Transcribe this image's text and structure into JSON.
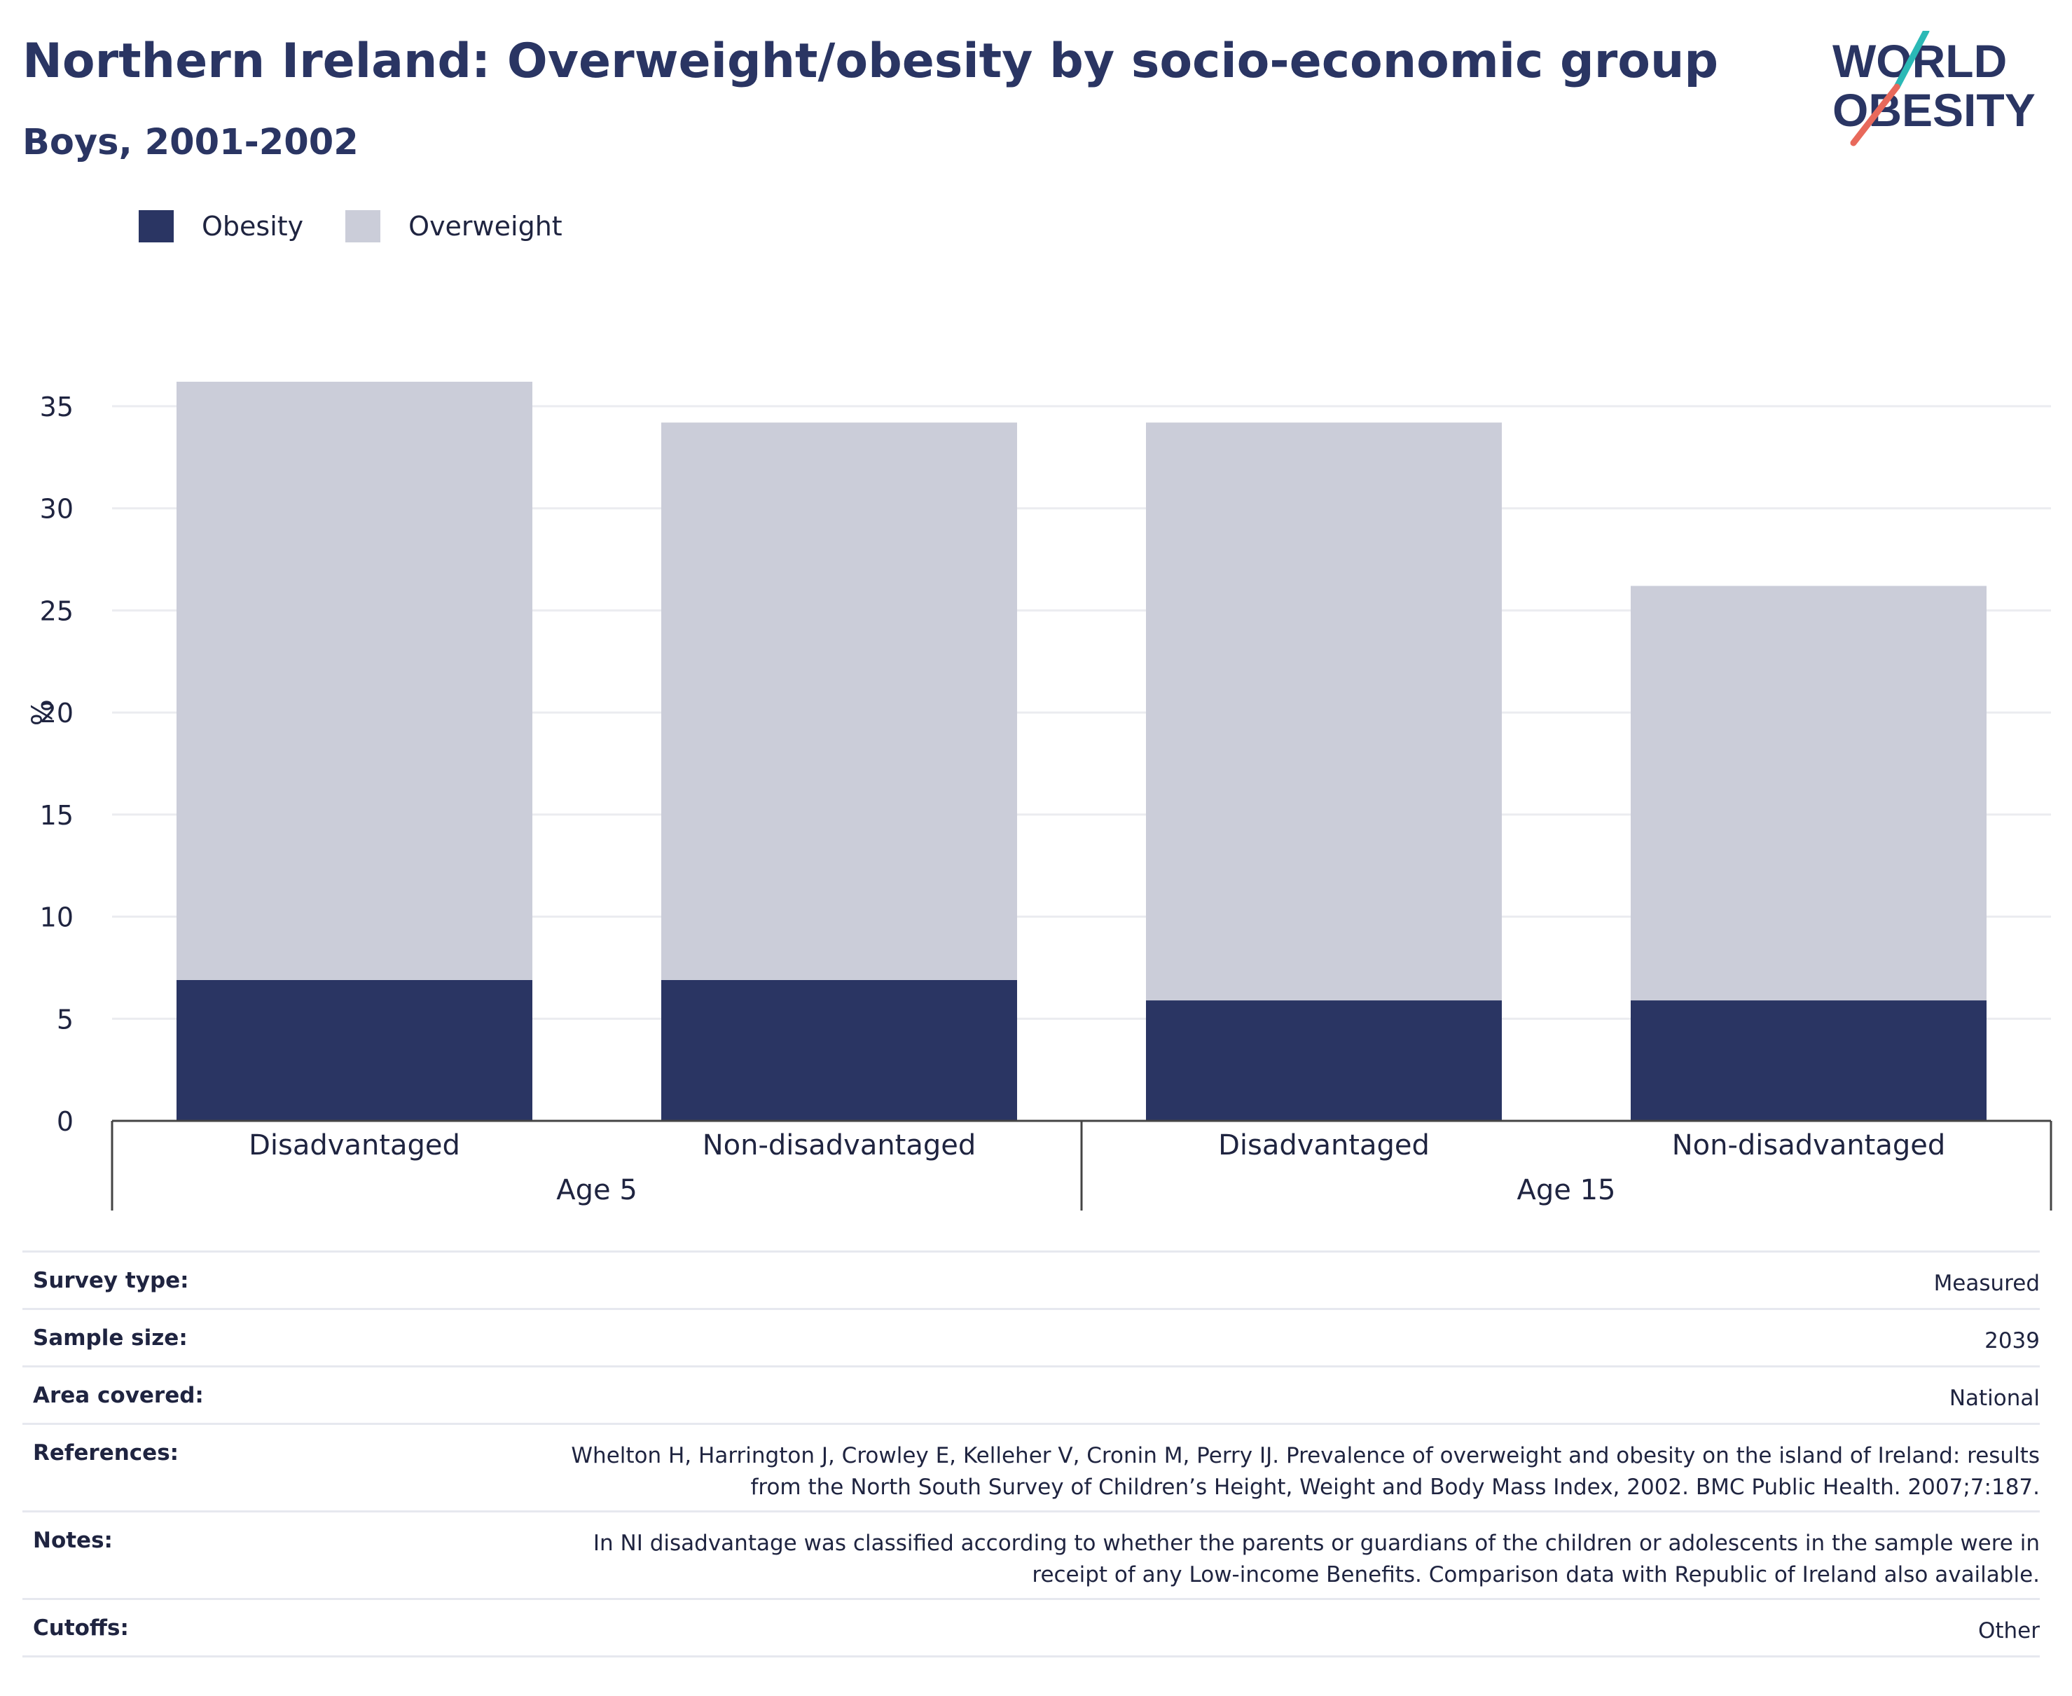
{
  "header": {
    "title": "Northern Ireland: Overweight/obesity by socio-economic group",
    "subtitle": "Boys, 2001-2002"
  },
  "logo": {
    "line1": "WORLD",
    "line2": "OBESITY"
  },
  "colors": {
    "obesity": "#2a3563",
    "overweight": "#cbcdd9",
    "title": "#2a3563",
    "logo_teal": "#2bb9b6",
    "logo_coral": "#e8695b"
  },
  "legend": [
    {
      "label": "Obesity",
      "color": "#2a3563"
    },
    {
      "label": "Overweight",
      "color": "#cbcdd9"
    }
  ],
  "chart_data": {
    "type": "bar",
    "stacked": true,
    "ylabel": "%",
    "ylim": [
      0,
      36.3
    ],
    "yticks": [
      0,
      5,
      10,
      15,
      20,
      25,
      30,
      35
    ],
    "grid": true,
    "legend_position": "top-left",
    "categories": [
      "Disadvantaged",
      "Non-disadvantaged",
      "Disadvantaged",
      "Non-disadvantaged"
    ],
    "groups": [
      {
        "label": "Age 5",
        "span": [
          0,
          1
        ]
      },
      {
        "label": "Age 15",
        "span": [
          2,
          3
        ]
      }
    ],
    "series": [
      {
        "name": "Obesity",
        "values": [
          6.9,
          6.9,
          5.9,
          5.9
        ]
      },
      {
        "name": "Overweight",
        "values": [
          29.3,
          27.3,
          28.3,
          20.3
        ]
      }
    ]
  },
  "meta": [
    {
      "label": "Survey type:",
      "value": "Measured"
    },
    {
      "label": "Sample size:",
      "value": "2039"
    },
    {
      "label": "Area covered:",
      "value": "National"
    },
    {
      "label": "References:",
      "value": "Whelton H, Harrington J, Crowley E, Kelleher V, Cronin M, Perry IJ. Prevalence of overweight and obesity on the island of Ireland: results from the North South Survey of Children’s Height, Weight and Body Mass Index, 2002. BMC Public Health. 2007;7:187."
    },
    {
      "label": "Notes:",
      "value": "In NI disadvantage was classified according to whether the parents or guardians of the children or adolescents in the sample were in receipt of any Low-income Benefits. Comparison data with Republic of Ireland also available."
    },
    {
      "label": "Cutoffs:",
      "value": "Other"
    }
  ]
}
